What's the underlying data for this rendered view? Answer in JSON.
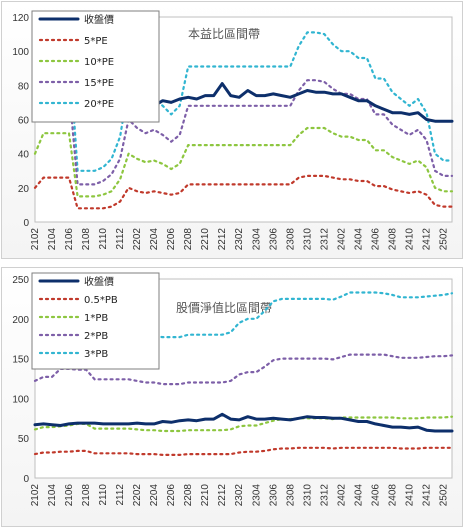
{
  "chart_data": [
    {
      "type": "line",
      "title": "本益比區間帶",
      "ylim": [
        0,
        120
      ],
      "yticks": [
        0,
        20,
        40,
        60,
        80,
        100,
        120
      ],
      "x": [
        "2102",
        "2103",
        "2104",
        "2105",
        "2106",
        "2107",
        "2108",
        "2109",
        "2110",
        "2111",
        "2112",
        "2201",
        "2202",
        "2203",
        "2204",
        "2205",
        "2206",
        "2207",
        "2208",
        "2209",
        "2210",
        "2211",
        "2212",
        "2301",
        "2302",
        "2303",
        "2304",
        "2305",
        "2306",
        "2307",
        "2308",
        "2309",
        "2310",
        "2311",
        "2312",
        "2401",
        "2402",
        "2403",
        "2404",
        "2405",
        "2406",
        "2407",
        "2408",
        "2409",
        "2410",
        "2411",
        "2412",
        "2501",
        "2502",
        "2503"
      ],
      "xticks": [
        "2102",
        "2104",
        "2106",
        "2108",
        "2110",
        "2112",
        "2202",
        "2204",
        "2206",
        "2208",
        "2210",
        "2212",
        "2302",
        "2304",
        "2306",
        "2308",
        "2310",
        "2312",
        "2402",
        "2404",
        "2406",
        "2408",
        "2410",
        "2412",
        "2502"
      ],
      "series": [
        {
          "name": "收盤價",
          "color": "#0d2f6b",
          "dash": "",
          "width": 3,
          "values": [
            67,
            67,
            67,
            67,
            67,
            67,
            67,
            67,
            68,
            68,
            68,
            68,
            69,
            68,
            68,
            71,
            70,
            72,
            73,
            72,
            74,
            74,
            81,
            74,
            73,
            77,
            74,
            74,
            75,
            74,
            73,
            75,
            77,
            76,
            76,
            75,
            75,
            73,
            71,
            71,
            68,
            66,
            64,
            64,
            63,
            64,
            60,
            59,
            59,
            59
          ]
        },
        {
          "name": "5*PE",
          "color": "#c0392b",
          "dash": "2,4",
          "width": 2.2,
          "values": [
            20,
            26,
            26,
            26,
            26,
            8,
            8,
            8,
            8,
            9,
            12,
            20,
            18,
            17,
            18,
            17,
            16,
            17,
            22,
            22,
            22,
            22,
            22,
            22,
            22,
            22,
            22,
            22,
            22,
            22,
            22,
            26,
            27,
            27,
            27,
            26,
            25,
            25,
            24,
            24,
            21,
            21,
            19,
            18,
            17,
            18,
            16,
            10,
            9,
            9
          ]
        },
        {
          "name": "10*PE",
          "color": "#8dc63f",
          "dash": "2,4",
          "width": 2.2,
          "values": [
            40,
            52,
            52,
            52,
            52,
            15,
            15,
            15,
            16,
            18,
            25,
            40,
            37,
            35,
            36,
            34,
            31,
            34,
            45,
            45,
            45,
            45,
            45,
            45,
            45,
            45,
            45,
            45,
            45,
            45,
            45,
            51,
            55,
            55,
            55,
            52,
            50,
            50,
            48,
            48,
            42,
            42,
            38,
            36,
            34,
            36,
            32,
            20,
            18,
            18
          ]
        },
        {
          "name": "15*PE",
          "color": "#7d5fa8",
          "dash": "2,4",
          "width": 2.2,
          "values": [
            60,
            78,
            78,
            78,
            78,
            22,
            22,
            22,
            24,
            28,
            37,
            60,
            55,
            52,
            54,
            51,
            47,
            51,
            68,
            68,
            68,
            68,
            68,
            68,
            68,
            68,
            68,
            68,
            68,
            68,
            68,
            77,
            83,
            83,
            82,
            78,
            75,
            75,
            72,
            72,
            63,
            63,
            57,
            54,
            51,
            54,
            48,
            30,
            27,
            27
          ]
        },
        {
          "name": "20*PE",
          "color": "#31b5d1",
          "dash": "2,4",
          "width": 2.2,
          "values": [
            80,
            104,
            104,
            104,
            104,
            30,
            30,
            30,
            32,
            37,
            50,
            80,
            73,
            69,
            72,
            68,
            63,
            68,
            91,
            91,
            91,
            91,
            91,
            91,
            91,
            91,
            91,
            91,
            91,
            91,
            91,
            103,
            111,
            111,
            110,
            104,
            100,
            100,
            96,
            96,
            84,
            84,
            76,
            72,
            68,
            72,
            64,
            40,
            36,
            36
          ]
        }
      ]
    },
    {
      "type": "line",
      "title": "股價淨值比區間帶",
      "ylim": [
        0,
        250
      ],
      "yticks": [
        0,
        50,
        100,
        150,
        200,
        250
      ],
      "x": [
        "2102",
        "2103",
        "2104",
        "2105",
        "2106",
        "2107",
        "2108",
        "2109",
        "2110",
        "2111",
        "2112",
        "2201",
        "2202",
        "2203",
        "2204",
        "2205",
        "2206",
        "2207",
        "2208",
        "2209",
        "2210",
        "2211",
        "2212",
        "2301",
        "2302",
        "2303",
        "2304",
        "2305",
        "2306",
        "2307",
        "2308",
        "2309",
        "2310",
        "2311",
        "2312",
        "2401",
        "2402",
        "2403",
        "2404",
        "2405",
        "2406",
        "2407",
        "2408",
        "2409",
        "2410",
        "2411",
        "2412",
        "2501",
        "2502",
        "2503"
      ],
      "xticks": [
        "2102",
        "2104",
        "2106",
        "2108",
        "2110",
        "2112",
        "2202",
        "2204",
        "2206",
        "2208",
        "2210",
        "2212",
        "2302",
        "2304",
        "2306",
        "2308",
        "2310",
        "2312",
        "2402",
        "2404",
        "2406",
        "2408",
        "2410",
        "2412",
        "2502"
      ],
      "series": [
        {
          "name": "收盤價",
          "color": "#0d2f6b",
          "dash": "",
          "width": 3,
          "values": [
            67,
            68,
            67,
            66,
            68,
            69,
            69,
            69,
            68,
            68,
            68,
            68,
            69,
            68,
            68,
            71,
            70,
            72,
            73,
            72,
            74,
            74,
            80,
            74,
            73,
            77,
            74,
            74,
            75,
            74,
            73,
            75,
            77,
            76,
            76,
            75,
            75,
            73,
            71,
            71,
            68,
            66,
            64,
            64,
            63,
            64,
            60,
            59,
            59,
            59
          ]
        },
        {
          "name": "0.5*PB",
          "color": "#c0392b",
          "dash": "2,4",
          "width": 2.2,
          "values": [
            30,
            32,
            32,
            33,
            33,
            34,
            34,
            31,
            31,
            31,
            31,
            31,
            30,
            30,
            30,
            29,
            29,
            29,
            30,
            30,
            30,
            30,
            30,
            30,
            32,
            33,
            33,
            34,
            36,
            37,
            37,
            38,
            38,
            38,
            38,
            37,
            38,
            38,
            38,
            38,
            38,
            38,
            38,
            37,
            37,
            37,
            38,
            38,
            38,
            38
          ]
        },
        {
          "name": "1*PB",
          "color": "#8dc63f",
          "dash": "2,4",
          "width": 2.2,
          "values": [
            61,
            64,
            64,
            65,
            66,
            68,
            68,
            62,
            62,
            62,
            62,
            62,
            61,
            60,
            60,
            59,
            59,
            59,
            60,
            60,
            60,
            60,
            60,
            61,
            65,
            66,
            66,
            69,
            72,
            74,
            74,
            75,
            75,
            75,
            75,
            74,
            76,
            76,
            76,
            76,
            76,
            76,
            76,
            75,
            75,
            75,
            76,
            76,
            76,
            77
          ]
        },
        {
          "name": "2*PB",
          "color": "#7d5fa8",
          "dash": "2,4",
          "width": 2.2,
          "values": [
            122,
            127,
            127,
            137,
            137,
            136,
            136,
            124,
            124,
            124,
            124,
            124,
            122,
            120,
            120,
            118,
            118,
            118,
            120,
            120,
            120,
            120,
            120,
            122,
            130,
            133,
            133,
            140,
            148,
            150,
            150,
            150,
            150,
            150,
            150,
            149,
            152,
            155,
            155,
            155,
            155,
            155,
            153,
            151,
            151,
            151,
            152,
            153,
            153,
            154
          ]
        },
        {
          "name": "3*PB",
          "color": "#31b5d1",
          "dash": "2,4",
          "width": 2.2,
          "values": [
            183,
            191,
            191,
            206,
            206,
            204,
            204,
            186,
            186,
            186,
            186,
            186,
            183,
            179,
            178,
            177,
            177,
            177,
            180,
            180,
            180,
            180,
            180,
            183,
            195,
            200,
            200,
            210,
            222,
            225,
            225,
            225,
            225,
            225,
            225,
            224,
            228,
            233,
            233,
            233,
            233,
            232,
            230,
            227,
            227,
            227,
            228,
            229,
            230,
            232
          ]
        }
      ]
    }
  ]
}
